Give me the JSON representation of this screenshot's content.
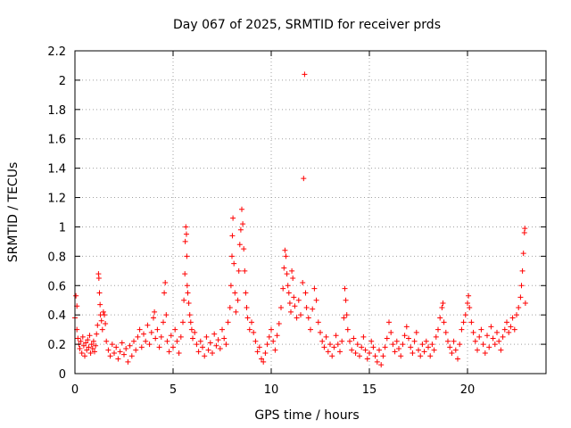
{
  "chart_data": {
    "type": "scatter",
    "title": "Day 067 of 2025, SRMTID for receiver prds",
    "xlabel": "GPS time / hours",
    "ylabel": "SRMTID / TECUs",
    "xlim": [
      0,
      24
    ],
    "ylim": [
      0,
      2.2
    ],
    "xticks": [
      0,
      5,
      10,
      15,
      20
    ],
    "xtick_labels": [
      "0",
      "5",
      "10",
      "15",
      "20"
    ],
    "yticks": [
      0,
      0.2,
      0.4,
      0.6,
      0.8,
      1.0,
      1.2,
      1.4,
      1.6,
      1.8,
      2.0,
      2.2
    ],
    "ytick_labels": [
      "0",
      "0.2",
      "0.4",
      "0.6",
      "0.8",
      "1",
      "1.2",
      "1.4",
      "1.6",
      "1.8",
      "2",
      "2.2"
    ],
    "grid": true,
    "marker": "plus",
    "marker_color": "#ff0000",
    "series": [
      {
        "name": "SRMTID",
        "points": [
          [
            0.0,
            0.38
          ],
          [
            0.05,
            0.53
          ],
          [
            0.1,
            0.46
          ],
          [
            0.1,
            0.3
          ],
          [
            0.15,
            0.24
          ],
          [
            0.2,
            0.2
          ],
          [
            0.25,
            0.17
          ],
          [
            0.3,
            0.22
          ],
          [
            0.35,
            0.14
          ],
          [
            0.4,
            0.25
          ],
          [
            0.45,
            0.19
          ],
          [
            0.5,
            0.12
          ],
          [
            0.55,
            0.21
          ],
          [
            0.6,
            0.16
          ],
          [
            0.65,
            0.23
          ],
          [
            0.7,
            0.18
          ],
          [
            0.75,
            0.26
          ],
          [
            0.8,
            0.14
          ],
          [
            0.85,
            0.2
          ],
          [
            0.9,
            0.17
          ],
          [
            0.95,
            0.22
          ],
          [
            1.0,
            0.15
          ],
          [
            1.05,
            0.19
          ],
          [
            1.1,
            0.27
          ],
          [
            1.15,
            0.33
          ],
          [
            1.2,
            0.68
          ],
          [
            1.22,
            0.65
          ],
          [
            1.25,
            0.55
          ],
          [
            1.28,
            0.47
          ],
          [
            1.3,
            0.4
          ],
          [
            1.35,
            0.36
          ],
          [
            1.4,
            0.3
          ],
          [
            1.45,
            0.42
          ],
          [
            1.5,
            0.4
          ],
          [
            1.55,
            0.34
          ],
          [
            1.6,
            0.22
          ],
          [
            1.7,
            0.16
          ],
          [
            1.8,
            0.12
          ],
          [
            1.9,
            0.2
          ],
          [
            2.0,
            0.14
          ],
          [
            2.1,
            0.18
          ],
          [
            2.2,
            0.1
          ],
          [
            2.3,
            0.15
          ],
          [
            2.4,
            0.21
          ],
          [
            2.5,
            0.13
          ],
          [
            2.6,
            0.17
          ],
          [
            2.7,
            0.08
          ],
          [
            2.8,
            0.19
          ],
          [
            2.9,
            0.12
          ],
          [
            3.0,
            0.22
          ],
          [
            3.1,
            0.16
          ],
          [
            3.2,
            0.25
          ],
          [
            3.3,
            0.3
          ],
          [
            3.4,
            0.18
          ],
          [
            3.5,
            0.27
          ],
          [
            3.6,
            0.22
          ],
          [
            3.7,
            0.33
          ],
          [
            3.8,
            0.2
          ],
          [
            3.9,
            0.28
          ],
          [
            4.0,
            0.38
          ],
          [
            4.05,
            0.42
          ],
          [
            4.1,
            0.24
          ],
          [
            4.2,
            0.3
          ],
          [
            4.3,
            0.18
          ],
          [
            4.4,
            0.25
          ],
          [
            4.5,
            0.35
          ],
          [
            4.55,
            0.55
          ],
          [
            4.6,
            0.62
          ],
          [
            4.65,
            0.4
          ],
          [
            4.7,
            0.22
          ],
          [
            4.8,
            0.15
          ],
          [
            4.9,
            0.26
          ],
          [
            5.0,
            0.18
          ],
          [
            5.1,
            0.3
          ],
          [
            5.2,
            0.22
          ],
          [
            5.3,
            0.14
          ],
          [
            5.4,
            0.25
          ],
          [
            5.5,
            0.35
          ],
          [
            5.55,
            0.5
          ],
          [
            5.6,
            0.68
          ],
          [
            5.62,
            0.9
          ],
          [
            5.65,
            1.0
          ],
          [
            5.68,
            0.95
          ],
          [
            5.7,
            0.8
          ],
          [
            5.72,
            0.6
          ],
          [
            5.75,
            0.55
          ],
          [
            5.8,
            0.48
          ],
          [
            5.85,
            0.4
          ],
          [
            5.9,
            0.35
          ],
          [
            5.95,
            0.3
          ],
          [
            6.0,
            0.24
          ],
          [
            6.1,
            0.28
          ],
          [
            6.2,
            0.2
          ],
          [
            6.3,
            0.15
          ],
          [
            6.4,
            0.22
          ],
          [
            6.5,
            0.18
          ],
          [
            6.6,
            0.12
          ],
          [
            6.7,
            0.25
          ],
          [
            6.8,
            0.16
          ],
          [
            6.9,
            0.21
          ],
          [
            7.0,
            0.14
          ],
          [
            7.1,
            0.27
          ],
          [
            7.2,
            0.19
          ],
          [
            7.3,
            0.23
          ],
          [
            7.4,
            0.17
          ],
          [
            7.5,
            0.3
          ],
          [
            7.6,
            0.24
          ],
          [
            7.7,
            0.2
          ],
          [
            7.8,
            0.35
          ],
          [
            7.9,
            0.45
          ],
          [
            7.95,
            0.6
          ],
          [
            8.0,
            0.8
          ],
          [
            8.02,
            0.94
          ],
          [
            8.05,
            1.06
          ],
          [
            8.1,
            0.75
          ],
          [
            8.15,
            0.55
          ],
          [
            8.2,
            0.42
          ],
          [
            8.3,
            0.5
          ],
          [
            8.35,
            0.7
          ],
          [
            8.4,
            0.88
          ],
          [
            8.45,
            0.98
          ],
          [
            8.5,
            1.12
          ],
          [
            8.55,
            1.02
          ],
          [
            8.6,
            0.85
          ],
          [
            8.65,
            0.7
          ],
          [
            8.7,
            0.55
          ],
          [
            8.75,
            0.45
          ],
          [
            8.8,
            0.38
          ],
          [
            8.9,
            0.3
          ],
          [
            9.0,
            0.35
          ],
          [
            9.1,
            0.28
          ],
          [
            9.2,
            0.22
          ],
          [
            9.3,
            0.15
          ],
          [
            9.4,
            0.18
          ],
          [
            9.5,
            0.1
          ],
          [
            9.6,
            0.08
          ],
          [
            9.7,
            0.14
          ],
          [
            9.8,
            0.2
          ],
          [
            9.9,
            0.25
          ],
          [
            10.0,
            0.3
          ],
          [
            10.1,
            0.22
          ],
          [
            10.2,
            0.16
          ],
          [
            10.3,
            0.26
          ],
          [
            10.4,
            0.34
          ],
          [
            10.5,
            0.45
          ],
          [
            10.6,
            0.58
          ],
          [
            10.65,
            0.72
          ],
          [
            10.7,
            0.84
          ],
          [
            10.75,
            0.8
          ],
          [
            10.8,
            0.68
          ],
          [
            10.85,
            0.6
          ],
          [
            10.9,
            0.55
          ],
          [
            10.95,
            0.48
          ],
          [
            11.0,
            0.42
          ],
          [
            11.05,
            0.7
          ],
          [
            11.1,
            0.65
          ],
          [
            11.15,
            0.52
          ],
          [
            11.2,
            0.46
          ],
          [
            11.3,
            0.38
          ],
          [
            11.4,
            0.5
          ],
          [
            11.5,
            0.4
          ],
          [
            11.6,
            0.62
          ],
          [
            11.65,
            1.33
          ],
          [
            11.7,
            2.04
          ],
          [
            11.75,
            0.55
          ],
          [
            11.8,
            0.45
          ],
          [
            11.9,
            0.38
          ],
          [
            12.0,
            0.3
          ],
          [
            12.1,
            0.44
          ],
          [
            12.2,
            0.58
          ],
          [
            12.3,
            0.5
          ],
          [
            12.4,
            0.35
          ],
          [
            12.5,
            0.28
          ],
          [
            12.6,
            0.22
          ],
          [
            12.7,
            0.18
          ],
          [
            12.8,
            0.25
          ],
          [
            12.9,
            0.15
          ],
          [
            13.0,
            0.2
          ],
          [
            13.1,
            0.12
          ],
          [
            13.2,
            0.18
          ],
          [
            13.3,
            0.26
          ],
          [
            13.4,
            0.2
          ],
          [
            13.5,
            0.15
          ],
          [
            13.6,
            0.22
          ],
          [
            13.7,
            0.38
          ],
          [
            13.75,
            0.58
          ],
          [
            13.8,
            0.5
          ],
          [
            13.85,
            0.4
          ],
          [
            13.9,
            0.3
          ],
          [
            14.0,
            0.22
          ],
          [
            14.1,
            0.16
          ],
          [
            14.2,
            0.24
          ],
          [
            14.3,
            0.14
          ],
          [
            14.4,
            0.2
          ],
          [
            14.5,
            0.12
          ],
          [
            14.6,
            0.18
          ],
          [
            14.7,
            0.25
          ],
          [
            14.8,
            0.16
          ],
          [
            14.9,
            0.1
          ],
          [
            15.0,
            0.14
          ],
          [
            15.1,
            0.22
          ],
          [
            15.2,
            0.18
          ],
          [
            15.3,
            0.12
          ],
          [
            15.4,
            0.08
          ],
          [
            15.5,
            0.16
          ],
          [
            15.6,
            0.06
          ],
          [
            15.7,
            0.12
          ],
          [
            15.8,
            0.18
          ],
          [
            15.9,
            0.24
          ],
          [
            16.0,
            0.35
          ],
          [
            16.1,
            0.28
          ],
          [
            16.2,
            0.2
          ],
          [
            16.3,
            0.15
          ],
          [
            16.4,
            0.22
          ],
          [
            16.5,
            0.17
          ],
          [
            16.6,
            0.12
          ],
          [
            16.7,
            0.2
          ],
          [
            16.8,
            0.26
          ],
          [
            16.9,
            0.32
          ],
          [
            17.0,
            0.24
          ],
          [
            17.1,
            0.18
          ],
          [
            17.2,
            0.14
          ],
          [
            17.3,
            0.22
          ],
          [
            17.4,
            0.28
          ],
          [
            17.5,
            0.16
          ],
          [
            17.6,
            0.12
          ],
          [
            17.7,
            0.2
          ],
          [
            17.8,
            0.15
          ],
          [
            17.9,
            0.22
          ],
          [
            18.0,
            0.18
          ],
          [
            18.1,
            0.12
          ],
          [
            18.2,
            0.2
          ],
          [
            18.3,
            0.16
          ],
          [
            18.4,
            0.25
          ],
          [
            18.5,
            0.3
          ],
          [
            18.6,
            0.38
          ],
          [
            18.7,
            0.45
          ],
          [
            18.75,
            0.48
          ],
          [
            18.8,
            0.35
          ],
          [
            18.9,
            0.28
          ],
          [
            19.0,
            0.22
          ],
          [
            19.1,
            0.18
          ],
          [
            19.2,
            0.14
          ],
          [
            19.3,
            0.22
          ],
          [
            19.4,
            0.16
          ],
          [
            19.5,
            0.1
          ],
          [
            19.6,
            0.2
          ],
          [
            19.7,
            0.3
          ],
          [
            19.8,
            0.35
          ],
          [
            19.9,
            0.4
          ],
          [
            20.0,
            0.48
          ],
          [
            20.05,
            0.53
          ],
          [
            20.1,
            0.45
          ],
          [
            20.2,
            0.35
          ],
          [
            20.3,
            0.28
          ],
          [
            20.4,
            0.22
          ],
          [
            20.5,
            0.16
          ],
          [
            20.6,
            0.25
          ],
          [
            20.7,
            0.3
          ],
          [
            20.8,
            0.2
          ],
          [
            20.9,
            0.14
          ],
          [
            21.0,
            0.26
          ],
          [
            21.1,
            0.18
          ],
          [
            21.2,
            0.32
          ],
          [
            21.3,
            0.24
          ],
          [
            21.4,
            0.2
          ],
          [
            21.5,
            0.28
          ],
          [
            21.6,
            0.22
          ],
          [
            21.7,
            0.16
          ],
          [
            21.8,
            0.25
          ],
          [
            21.9,
            0.3
          ],
          [
            22.0,
            0.35
          ],
          [
            22.1,
            0.28
          ],
          [
            22.2,
            0.32
          ],
          [
            22.3,
            0.38
          ],
          [
            22.4,
            0.3
          ],
          [
            22.5,
            0.4
          ],
          [
            22.6,
            0.45
          ],
          [
            22.7,
            0.52
          ],
          [
            22.75,
            0.6
          ],
          [
            22.8,
            0.7
          ],
          [
            22.85,
            0.82
          ],
          [
            22.9,
            0.96
          ],
          [
            22.92,
            0.99
          ],
          [
            22.95,
            0.48
          ]
        ]
      }
    ]
  }
}
